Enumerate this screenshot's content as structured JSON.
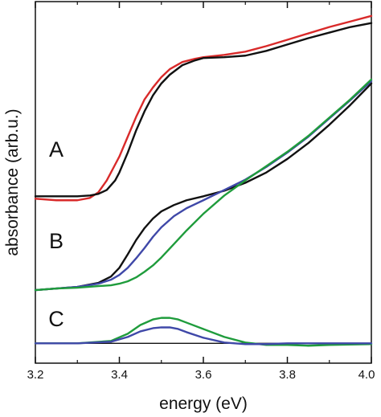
{
  "chart_data": {
    "type": "line",
    "xlabel": "energy (eV)",
    "ylabel": "absorbance (arb.u.)",
    "xlim": [
      3.2,
      4.0
    ],
    "ylim": [
      -0.25,
      4.3
    ],
    "xticks": [
      "3.2",
      "3.4",
      "3.6",
      "3.8",
      "4.0"
    ],
    "grid": false,
    "panels": [
      {
        "label": "A",
        "series": [
          {
            "color": "#d92a2a",
            "x": [
              3.2,
              3.25,
              3.3,
              3.33,
              3.35,
              3.37,
              3.39,
              3.4,
              3.42,
              3.44,
              3.46,
              3.48,
              3.5,
              3.52,
              3.55,
              3.58,
              3.6,
              3.65,
              3.7,
              3.75,
              3.8,
              3.85,
              3.9,
              3.95,
              4.0
            ],
            "y": [
              1.82,
              1.8,
              1.8,
              1.83,
              1.9,
              2.05,
              2.25,
              2.35,
              2.6,
              2.85,
              3.07,
              3.22,
              3.35,
              3.45,
              3.54,
              3.58,
              3.6,
              3.63,
              3.67,
              3.74,
              3.82,
              3.9,
              3.98,
              4.05,
              4.12
            ]
          },
          {
            "color": "#111111",
            "x": [
              3.2,
              3.25,
              3.3,
              3.33,
              3.35,
              3.37,
              3.39,
              3.4,
              3.42,
              3.44,
              3.46,
              3.48,
              3.5,
              3.52,
              3.55,
              3.58,
              3.6,
              3.65,
              3.7,
              3.75,
              3.8,
              3.85,
              3.9,
              3.95,
              4.0
            ],
            "y": [
              1.85,
              1.85,
              1.85,
              1.86,
              1.88,
              1.93,
              2.05,
              2.15,
              2.4,
              2.68,
              2.92,
              3.12,
              3.27,
              3.38,
              3.5,
              3.56,
              3.59,
              3.6,
              3.62,
              3.68,
              3.76,
              3.84,
              3.91,
              3.98,
              4.03
            ]
          }
        ]
      },
      {
        "label": "B",
        "series": [
          {
            "color": "#111111",
            "x": [
              3.2,
              3.25,
              3.3,
              3.35,
              3.38,
              3.4,
              3.42,
              3.44,
              3.46,
              3.48,
              3.5,
              3.53,
              3.56,
              3.6,
              3.65,
              3.7,
              3.75,
              3.8,
              3.85,
              3.9,
              3.95,
              4.0
            ],
            "y": [
              0.67,
              0.69,
              0.71,
              0.76,
              0.84,
              0.95,
              1.12,
              1.3,
              1.45,
              1.57,
              1.66,
              1.74,
              1.8,
              1.85,
              1.92,
              2.02,
              2.15,
              2.32,
              2.52,
              2.75,
              3.0,
              3.27
            ]
          },
          {
            "color": "#3f48a8",
            "x": [
              3.2,
              3.25,
              3.3,
              3.35,
              3.38,
              3.4,
              3.42,
              3.44,
              3.46,
              3.48,
              3.5,
              3.53,
              3.56,
              3.6,
              3.65,
              3.7,
              3.75,
              3.8,
              3.85,
              3.9,
              3.95,
              4.0
            ],
            "y": [
              0.67,
              0.69,
              0.71,
              0.75,
              0.8,
              0.86,
              0.95,
              1.07,
              1.2,
              1.34,
              1.46,
              1.6,
              1.7,
              1.8,
              1.93,
              2.06,
              2.22,
              2.4,
              2.6,
              2.83,
              3.06,
              3.3
            ]
          },
          {
            "color": "#1f9c3c",
            "x": [
              3.2,
              3.25,
              3.3,
              3.35,
              3.38,
              3.4,
              3.42,
              3.44,
              3.46,
              3.48,
              3.5,
              3.53,
              3.56,
              3.6,
              3.65,
              3.7,
              3.75,
              3.8,
              3.85,
              3.9,
              3.95,
              4.0
            ],
            "y": [
              0.67,
              0.69,
              0.7,
              0.72,
              0.73,
              0.75,
              0.78,
              0.83,
              0.9,
              0.98,
              1.08,
              1.25,
              1.42,
              1.63,
              1.86,
              2.05,
              2.23,
              2.41,
              2.61,
              2.84,
              3.07,
              3.32
            ]
          }
        ]
      },
      {
        "label": "C",
        "series": [
          {
            "color": "#1f9c3c",
            "x": [
              3.2,
              3.3,
              3.38,
              3.42,
              3.45,
              3.48,
              3.5,
              3.52,
              3.54,
              3.56,
              3.6,
              3.65,
              3.7,
              3.75,
              3.8,
              3.85,
              3.9,
              4.0
            ],
            "y": [
              0.0,
              0.0,
              0.03,
              0.12,
              0.23,
              0.3,
              0.32,
              0.32,
              0.3,
              0.26,
              0.18,
              0.08,
              0.01,
              -0.02,
              -0.02,
              -0.03,
              -0.02,
              -0.01
            ]
          },
          {
            "color": "#3f48a8",
            "x": [
              3.2,
              3.3,
              3.38,
              3.42,
              3.45,
              3.48,
              3.5,
              3.52,
              3.54,
              3.56,
              3.6,
              3.65,
              3.7,
              3.75,
              3.8,
              3.85,
              3.9,
              4.0
            ],
            "y": [
              0.0,
              0.0,
              0.02,
              0.08,
              0.15,
              0.19,
              0.2,
              0.2,
              0.18,
              0.14,
              0.07,
              0.01,
              -0.01,
              -0.01,
              0.0,
              0.0,
              0.0,
              0.0
            ]
          }
        ]
      }
    ],
    "baseline": 0
  }
}
